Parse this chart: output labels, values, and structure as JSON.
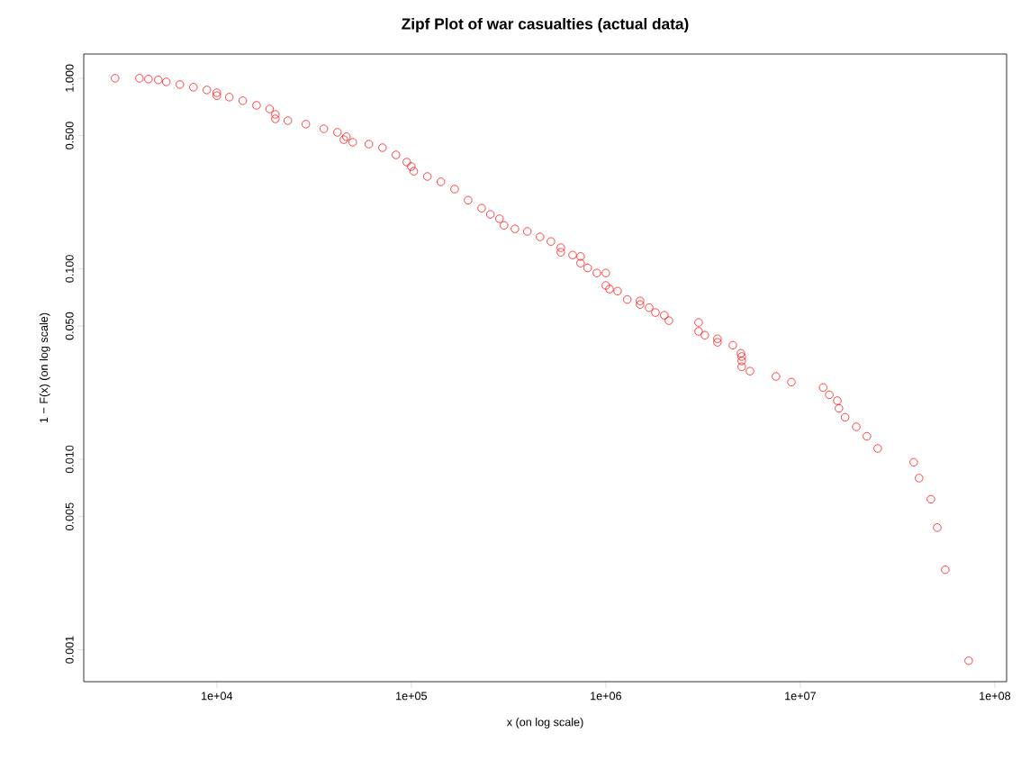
{
  "chart_data": {
    "type": "scatter",
    "title": "Zipf Plot of war casualties (actual data)",
    "xlabel": "x (on log scale)",
    "ylabel": "1 − F(x) (on log scale)",
    "log": "xy",
    "marker": "circle",
    "color": "#ff0000",
    "grid": false,
    "xlim": [
      2070,
      115000000
    ],
    "ylim": [
      0.00068,
      1.34
    ],
    "xticks": [
      {
        "value": 10000,
        "label": "1e+04"
      },
      {
        "value": 100000,
        "label": "1e+05"
      },
      {
        "value": 1000000,
        "label": "1e+06"
      },
      {
        "value": 10000000,
        "label": "1e+07"
      },
      {
        "value": 100000000,
        "label": "1e+08"
      }
    ],
    "yticks": [
      {
        "value": 0.001,
        "label": "0.001"
      },
      {
        "value": 0.005,
        "label": "0.005"
      },
      {
        "value": 0.01,
        "label": "0.010"
      },
      {
        "value": 0.05,
        "label": "0.050"
      },
      {
        "value": 0.1,
        "label": "0.100"
      },
      {
        "value": 0.5,
        "label": "0.500"
      },
      {
        "value": 1,
        "label": "1.000"
      }
    ],
    "x": [
      3000,
      4000,
      4450,
      5000,
      5500,
      6460,
      7580,
      8890,
      10000,
      10000,
      11600,
      13600,
      16000,
      18700,
      20000,
      20000,
      23200,
      28700,
      35500,
      41700,
      45000,
      46400,
      50000,
      60500,
      71100,
      83400,
      94800,
      100000,
      103000,
      121000,
      142000,
      167000,
      196000,
      230000,
      255000,
      284000,
      300000,
      341000,
      395000,
      459000,
      522000,
      587000,
      587000,
      675000,
      742000,
      742000,
      807000,
      899000,
      1000000,
      1000000,
      1045000,
      1150000,
      1290000,
      1500000,
      1500000,
      1670000,
      1800000,
      2000000,
      2110000,
      3000000,
      3000000,
      3230000,
      3750000,
      3750000,
      4500000,
      4950000,
      5000000,
      5000000,
      5000000,
      5510000,
      7500000,
      9000000,
      13100000,
      14100000,
      15500000,
      15800000,
      17000000,
      19400000,
      22000000,
      25000000,
      38300000,
      40800000,
      46900000,
      50600000,
      55600000,
      73400000
    ],
    "values": [
      1.0,
      1.0,
      0.99,
      0.98,
      0.957,
      0.927,
      0.897,
      0.868,
      0.84,
      0.81,
      0.796,
      0.762,
      0.721,
      0.69,
      0.646,
      0.612,
      0.599,
      0.574,
      0.543,
      0.52,
      0.476,
      0.493,
      0.461,
      0.451,
      0.432,
      0.396,
      0.363,
      0.344,
      0.325,
      0.305,
      0.286,
      0.262,
      0.229,
      0.208,
      0.193,
      0.183,
      0.169,
      0.162,
      0.157,
      0.147,
      0.139,
      0.129,
      0.122,
      0.118,
      0.116,
      0.107,
      0.101,
      0.095,
      0.095,
      0.0817,
      0.0782,
      0.0763,
      0.069,
      0.0678,
      0.0649,
      0.0625,
      0.0589,
      0.057,
      0.0534,
      0.0522,
      0.0469,
      0.0448,
      0.0429,
      0.0411,
      0.0397,
      0.036,
      0.0346,
      0.0328,
      0.0306,
      0.029,
      0.0272,
      0.0254,
      0.0238,
      0.0218,
      0.0203,
      0.0185,
      0.0166,
      0.0148,
      0.0132,
      0.0114,
      0.00964,
      0.00796,
      0.00617,
      0.00438,
      0.00263,
      0.000876
    ]
  }
}
